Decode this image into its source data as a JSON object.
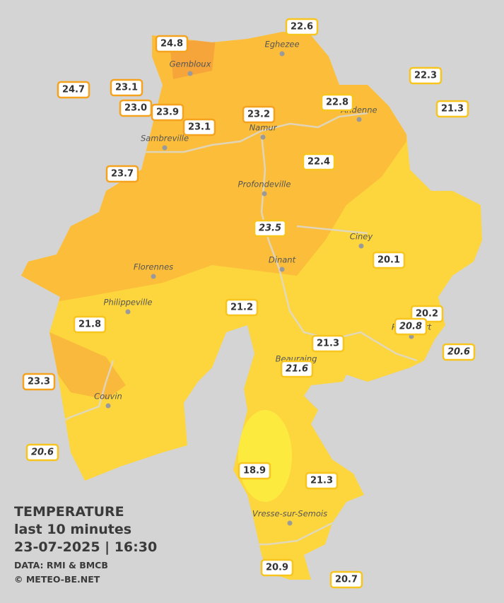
{
  "title": {
    "lines": [
      "TEMPERATURE",
      "last 10 minutes",
      "23-07-2025  |  16:30"
    ]
  },
  "credits": [
    "DATA: RMI & BMCB",
    "© METEO-BE.NET"
  ],
  "towns": [
    "Eghezee",
    "Gembloux",
    "Andenne",
    "Namur",
    "Sambreville",
    "Profondeville",
    "Ciney",
    "Dinant",
    "Florennes",
    "Philippeville",
    "Beauraing",
    "Rochefort",
    "Couvin",
    "Vresse-sur-Semois"
  ],
  "stations": [
    "24.8",
    "22.6",
    "22.3",
    "24.7",
    "23.1",
    "23.0",
    "23.9",
    "23.1",
    "23.2",
    "22.8",
    "21.3",
    "22.4",
    "23.7",
    "23.5",
    "20.1",
    "21.2",
    "20.2",
    "20.8",
    "21.8",
    "21.3",
    "20.6",
    "21.6",
    "23.3",
    "20.6",
    "18.9",
    "21.3",
    "20.9",
    "20.7"
  ]
}
